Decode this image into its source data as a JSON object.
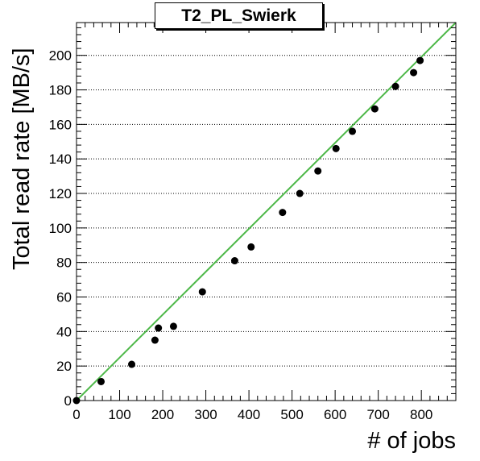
{
  "chart_data": {
    "type": "scatter",
    "title": "T2_PL_Swierk",
    "xlabel": "# of jobs",
    "ylabel": "Total read rate [MB/s]",
    "xlim": [
      0,
      880
    ],
    "ylim": [
      0,
      219
    ],
    "x_ticks": [
      0,
      100,
      200,
      300,
      400,
      500,
      600,
      700,
      800
    ],
    "y_ticks": [
      0,
      20,
      40,
      60,
      80,
      100,
      120,
      140,
      160,
      180,
      200
    ],
    "grid": "horizontal dotted",
    "series": [
      {
        "x": [
          0,
          57,
          128,
          182,
          190,
          225,
          292,
          367,
          405,
          478,
          518,
          560,
          602,
          640,
          692,
          740,
          782,
          797
        ],
        "y": [
          0,
          11,
          21,
          35,
          42,
          43,
          63,
          81,
          89,
          109,
          120,
          133,
          146,
          156,
          169,
          182,
          190,
          197
        ],
        "color": "#000000"
      }
    ],
    "fit_line": {
      "x": [
        0,
        880
      ],
      "y": [
        0,
        219
      ],
      "color": "#4db848"
    }
  }
}
